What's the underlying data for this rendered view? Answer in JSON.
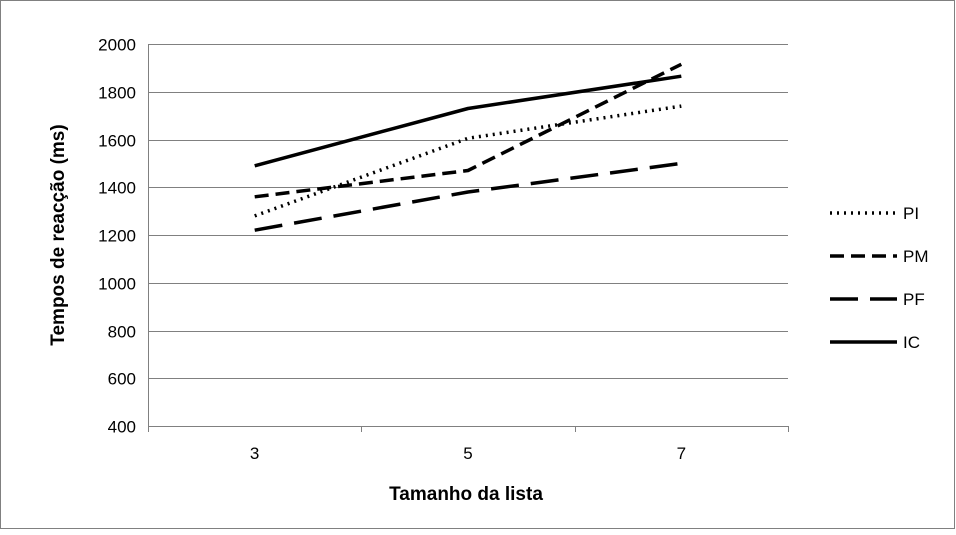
{
  "chart_data": {
    "type": "line",
    "title": "",
    "xlabel": "Tamanho da lista",
    "ylabel": "Tempos de reacção (ms)",
    "categories": [
      "3",
      "5",
      "7"
    ],
    "ylim": [
      400,
      2000
    ],
    "yticks": [
      400,
      600,
      800,
      1000,
      1200,
      1400,
      1600,
      1800,
      2000
    ],
    "grid": "horizontal",
    "legend_position": "right",
    "series": [
      {
        "name": "PI",
        "values": [
          1280,
          1605,
          1740
        ],
        "dash": "dotted",
        "color": "#000000"
      },
      {
        "name": "PM",
        "values": [
          1360,
          1470,
          1915
        ],
        "dash": "dashed",
        "color": "#000000"
      },
      {
        "name": "PF",
        "values": [
          1220,
          1380,
          1500
        ],
        "dash": "long-dash",
        "color": "#000000"
      },
      {
        "name": "IC",
        "values": [
          1490,
          1730,
          1865
        ],
        "dash": "solid",
        "color": "#000000"
      }
    ],
    "colors": {
      "gridline": "#808080",
      "frame_border": "#808080",
      "line": "#000000"
    }
  }
}
